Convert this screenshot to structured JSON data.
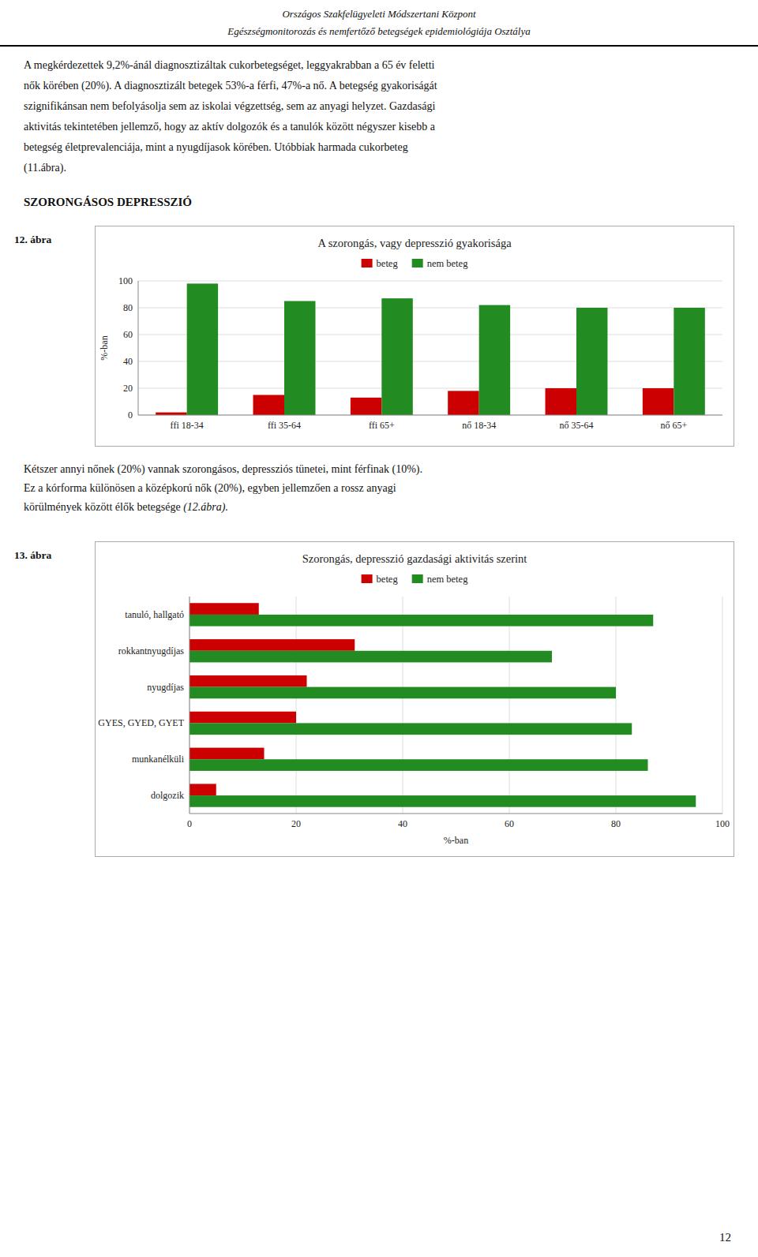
{
  "header": [
    "Országos Szakfelügyeleti Módszertani Központ",
    "Egészségmonitorozás és nemfertőző betegségek epidemiológiája Osztálya"
  ],
  "paragraphs": [
    [
      "A megkérdezettek 9,2%-ánál diagnosztizáltak cukorbetegséget, leggyakrabban a 65 év feletti",
      "nők körében (20%). A diagnosztizált betegek 53%-a férfi, 47%-a nő. A betegség gyakoriságát",
      "szignifikánsan nem befolyásolja sem az iskolai végzettség, sem az anyagi helyzet. Gazdasági",
      "aktivitás tekintetében jellemző, hogy az aktív dolgozók és a tanulók között négyszer kisebb a",
      "betegség életprevalenciája, mint a nyugdíjasok körében. Utóbbiak harmada cukorbeteg",
      "(11.ábra)."
    ],
    [
      "Kétszer annyi nőnek (20%) vannak szorongásos, depressziós tünetei, mint férfinak (10%).",
      "Ez a kórforma különösen a középkorú nők (20%), egyben jellemzően a rossz anyagi",
      "körülmények között élők betegsége (12.ábra)."
    ]
  ],
  "section_title": "SZORONGÁSOS DEPRESSZIÓ",
  "figure_labels": [
    "12. ábra",
    "13. ábra"
  ],
  "page_number": "12",
  "chart_data": [
    {
      "type": "bar",
      "title": "A szorongás, vagy depresszió gyakorisága",
      "categories": [
        "ffi 18-34",
        "ffi 35-64",
        "ffi 65+",
        "nő 18-34",
        "nő 35-64",
        "nő 65+"
      ],
      "series": [
        {
          "name": "beteg",
          "color": "#CC0000",
          "values": [
            2,
            15,
            13,
            18,
            20,
            20
          ]
        },
        {
          "name": "nem beteg",
          "color": "#228B22",
          "values": [
            98,
            85,
            87,
            82,
            80,
            80
          ]
        }
      ],
      "ylabel": "%-ban",
      "ylim": [
        0,
        100
      ],
      "yticks": [
        0,
        20,
        40,
        60,
        80,
        100
      ],
      "grid": true,
      "legend": "top"
    },
    {
      "type": "bar",
      "orientation": "horizontal",
      "title": "Szorongás, depresszió gazdasági aktivitás szerint",
      "categories": [
        "tanuló, hallgató",
        "rokkantnyugdíjas",
        "nyugdíjas",
        "GYES, GYED, GYET",
        "munkanélküli",
        "dolgozik"
      ],
      "series": [
        {
          "name": "beteg",
          "color": "#CC0000",
          "values": [
            13,
            31,
            22,
            20,
            14,
            5
          ]
        },
        {
          "name": "nem beteg",
          "color": "#228B22",
          "values": [
            87,
            68,
            80,
            83,
            86,
            95
          ]
        }
      ],
      "xlabel": "%-ban",
      "xlim": [
        0,
        100
      ],
      "xticks": [
        0,
        20,
        40,
        60,
        80,
        100
      ],
      "grid": true,
      "legend": "top"
    }
  ]
}
